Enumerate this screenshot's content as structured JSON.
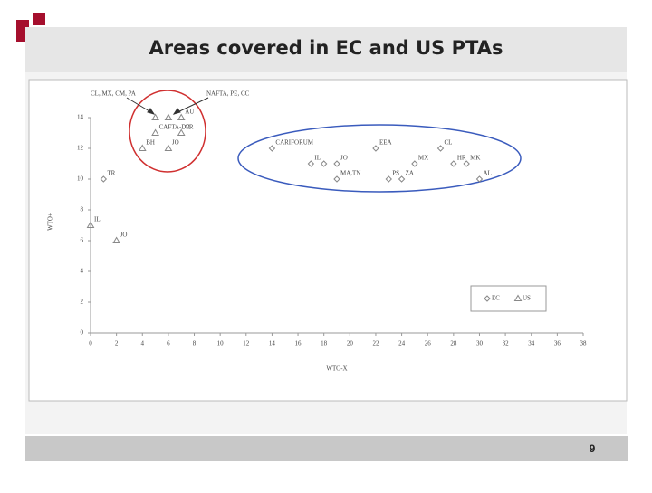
{
  "page_number": "9",
  "chart_data": {
    "type": "scatter",
    "title": "Areas covered in EC and US PTAs",
    "x_label": "WTO-X",
    "y_label": "WTO+",
    "xlim": [
      0,
      38
    ],
    "xticks": [
      0,
      2,
      4,
      6,
      8,
      10,
      12,
      14,
      16,
      18,
      20,
      22,
      24,
      26,
      28,
      30,
      32,
      34,
      36,
      38
    ],
    "ylim": [
      0,
      14
    ],
    "yticks": [
      0,
      2,
      4,
      6,
      8,
      10,
      12,
      14
    ],
    "annotations": [
      "CL, MX, CM, PA",
      "NAFTA, PE, CC"
    ],
    "series": [
      {
        "name": "EC",
        "marker": "diamond",
        "color": "#888888",
        "x": [
          14,
          22,
          27,
          17,
          18,
          19,
          25,
          28,
          29,
          19,
          23,
          24,
          30,
          1
        ],
        "values": [
          12,
          12,
          12,
          11,
          11,
          11,
          11,
          11,
          11,
          10,
          10,
          10,
          10,
          10
        ],
        "labels": [
          "CARIFORUM",
          "EEA",
          "CL",
          "IL",
          null,
          "JO",
          "MX",
          "HR",
          "MK",
          "MA,TN",
          "PS",
          "ZA",
          "AL",
          "TR"
        ]
      },
      {
        "name": "US",
        "marker": "triangle",
        "color": "#888888",
        "x": [
          5,
          6,
          7,
          5,
          7,
          4,
          6,
          0,
          2
        ],
        "values": [
          14,
          14,
          14,
          13,
          13,
          12,
          12,
          7,
          6
        ],
        "labels": [
          null,
          null,
          "AU",
          "CAFTA-DR",
          "CR",
          "BH",
          "JO",
          "IL",
          "JO"
        ]
      }
    ],
    "legend": "lower-right"
  }
}
